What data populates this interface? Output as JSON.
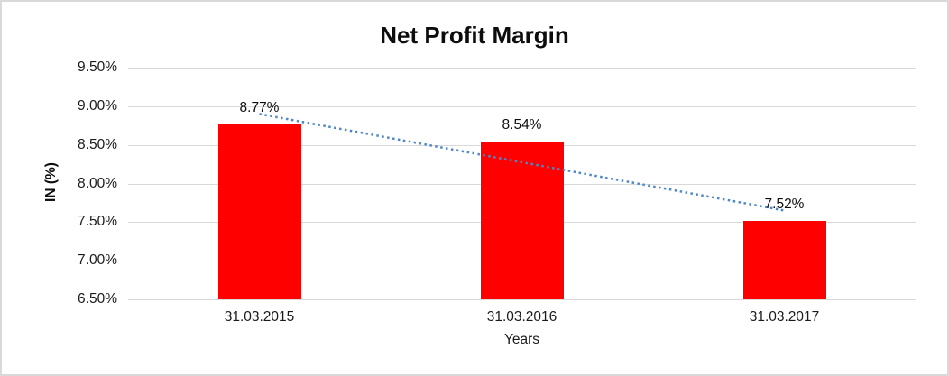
{
  "chart_data": {
    "type": "bar",
    "title": "Net Profit Margin",
    "xlabel": "Years",
    "ylabel": "IN (%)",
    "categories": [
      "31.03.2015",
      "31.03.2016",
      "31.03.2017"
    ],
    "values": [
      8.77,
      8.54,
      7.52
    ],
    "data_labels": [
      "8.77%",
      "8.54%",
      "7.52%"
    ],
    "yticks": [
      "9.50%",
      "9.00%",
      "8.50%",
      "8.00%",
      "7.50%",
      "7.00%",
      "6.50%"
    ],
    "ylim": [
      6.5,
      9.5
    ],
    "grid": "horizontal",
    "legend": "none",
    "bar_color": "#ff0000",
    "grid_color": "#d9d9d9",
    "text_color": "#1a1a1a",
    "trendline": {
      "type": "linear",
      "style": "dotted",
      "color": "#4e87c7",
      "endpoints": [
        8.9,
        7.65
      ]
    }
  }
}
